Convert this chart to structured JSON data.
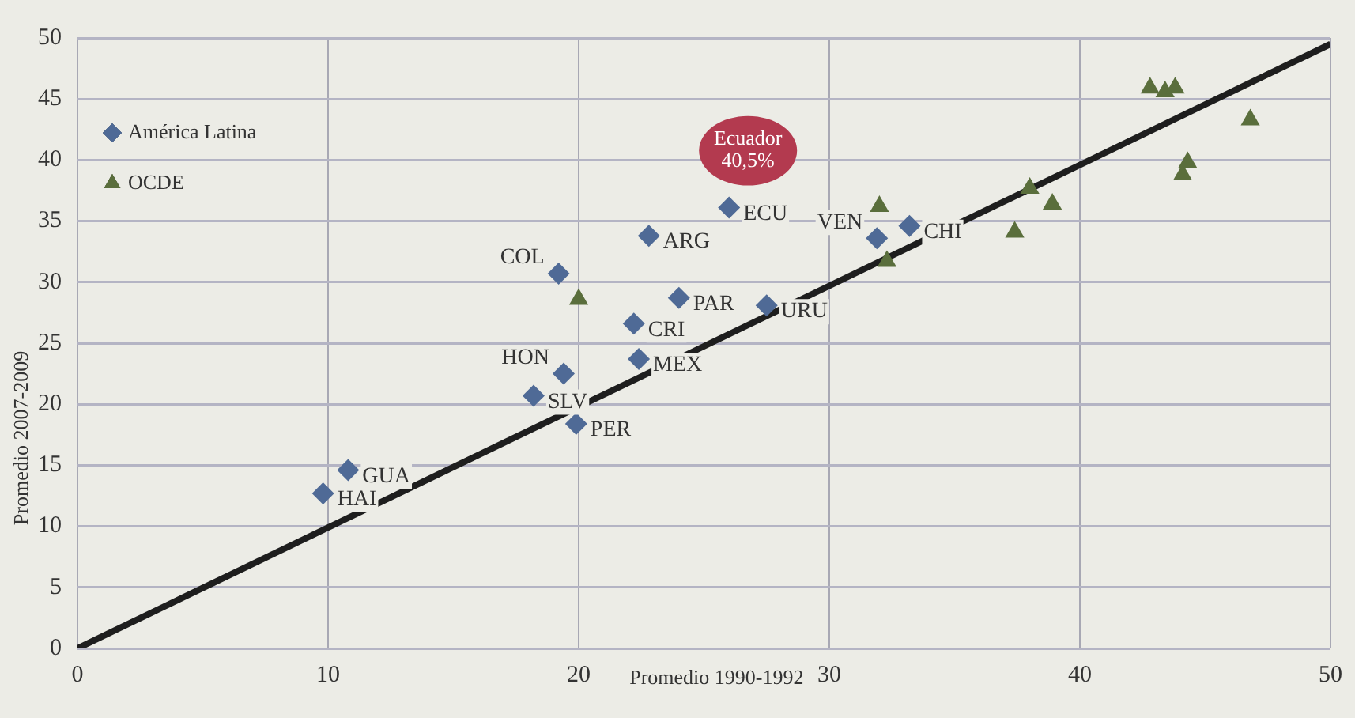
{
  "chart_data": {
    "type": "scatter",
    "xlabel": "Promedio 1990-1992",
    "ylabel": "Promedio 2007-2009",
    "xlim": [
      0,
      50
    ],
    "xticks": [
      0,
      10,
      20,
      30,
      40,
      50
    ],
    "ylim": [
      0,
      50
    ],
    "yticks": [
      0,
      5,
      10,
      15,
      20,
      25,
      30,
      35,
      40,
      45,
      50
    ],
    "grid": true,
    "legend": "top left",
    "series": [
      {
        "name": "América Latina",
        "color": "#4f6a96",
        "marker": "diamond",
        "x": [
          9.8,
          10.8,
          18.2,
          19.4,
          19.9,
          19.2,
          22.2,
          22.4,
          22.8,
          24.0,
          26.0,
          27.5,
          31.9,
          33.2
        ],
        "values": [
          12.7,
          14.6,
          20.7,
          22.5,
          18.4,
          30.7,
          26.6,
          23.7,
          33.8,
          28.7,
          36.1,
          28.1,
          33.6,
          34.6
        ]
      },
      {
        "name": "OCDE",
        "color": "#5a6e3c",
        "marker": "triangle",
        "x": [
          20.0,
          32.0,
          32.3,
          37.4,
          38.0,
          38.9,
          42.8,
          43.4,
          43.8,
          44.1,
          44.3,
          46.8
        ],
        "values": [
          28.6,
          36.2,
          31.7,
          34.1,
          37.7,
          36.4,
          45.9,
          45.6,
          45.9,
          38.8,
          39.8,
          43.3
        ]
      },
      {
        "type": "line",
        "color": "#1e1e1e",
        "x": [
          0,
          50
        ],
        "values": [
          0,
          49.5
        ]
      }
    ],
    "annotations": [
      {
        "text": "HAI",
        "x": 9.8,
        "y": 12.7
      },
      {
        "text": "GUA",
        "x": 10.8,
        "y": 14.6
      },
      {
        "text": "SLV",
        "x": 18.2,
        "y": 20.7
      },
      {
        "text": "HON",
        "x": 19.4,
        "y": 22.5
      },
      {
        "text": "PER",
        "x": 19.9,
        "y": 18.4
      },
      {
        "text": "COL",
        "x": 19.2,
        "y": 30.7
      },
      {
        "text": "CRI",
        "x": 22.2,
        "y": 26.6
      },
      {
        "text": "MEX",
        "x": 22.4,
        "y": 23.7
      },
      {
        "text": "ARG",
        "x": 22.8,
        "y": 33.8
      },
      {
        "text": "PAR",
        "x": 24.0,
        "y": 28.7
      },
      {
        "text": "ECU",
        "x": 26.0,
        "y": 36.1
      },
      {
        "text": "URU",
        "x": 27.5,
        "y": 28.1
      },
      {
        "text": "VEN",
        "x": 31.9,
        "y": 33.6
      },
      {
        "text": "CHI",
        "x": 33.2,
        "y": 34.6
      },
      {
        "text": "Ecuador\n40,5%",
        "x": 26.0,
        "y": 36.1
      }
    ]
  }
}
